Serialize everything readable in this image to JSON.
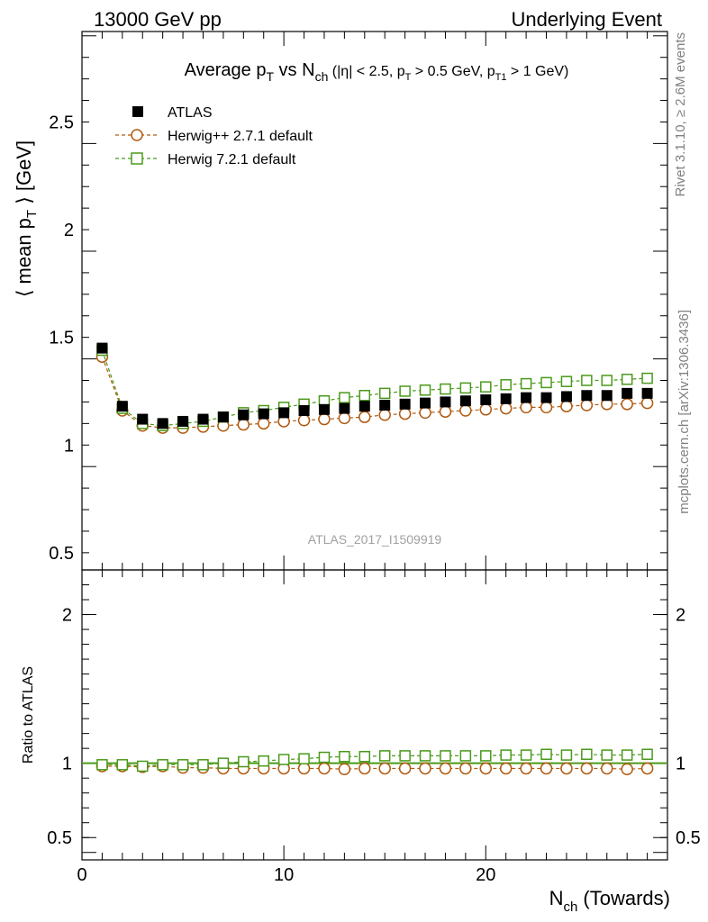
{
  "header": {
    "left": "13000 GeV pp",
    "right": "Underlying Event"
  },
  "side_labels": {
    "rivet": "Rivet 3.1.10, ≥ 2.6M events",
    "mcplots": "mcplots.cern.ch [arXiv:1306.3436]"
  },
  "watermark": "ATLAS_2017_I1509919",
  "chart_data": [
    {
      "type": "scatter",
      "panel": "main",
      "title_parts": {
        "p1": "Average p",
        "s1": "T",
        "p2": " vs N",
        "s2": "ch",
        "p3": " (|η| < 2.5, p",
        "s3": "T",
        "p4": " > 0.5 GeV, p",
        "s4": "T1",
        "p5": " > 1 GeV)"
      },
      "ylabel_parts": {
        "a": "⟨ mean p",
        "sub": "T",
        "b": " ⟩ [GeV]"
      },
      "xlim": [
        0,
        29
      ],
      "ylim": [
        0.42,
        2.92
      ],
      "yticks": [
        0.5,
        1,
        1.5,
        2,
        2.5
      ],
      "ytick_labels": [
        "0.5",
        "1",
        "1.5",
        "2",
        "2.5"
      ],
      "legend": [
        "ATLAS",
        "Herwig++ 2.7.1 default",
        "Herwig 7.2.1 default"
      ],
      "legend_position": "top-left",
      "x": [
        1,
        2,
        3,
        4,
        5,
        6,
        7,
        8,
        9,
        10,
        11,
        12,
        13,
        14,
        15,
        16,
        17,
        18,
        19,
        20,
        21,
        22,
        23,
        24,
        25,
        26,
        27,
        28
      ],
      "series": [
        {
          "name": "ATLAS",
          "color": "#000000",
          "marker": "filled-square",
          "values": [
            1.45,
            1.18,
            1.12,
            1.1,
            1.11,
            1.12,
            1.13,
            1.14,
            1.145,
            1.15,
            1.16,
            1.165,
            1.17,
            1.18,
            1.185,
            1.19,
            1.195,
            1.2,
            1.205,
            1.21,
            1.215,
            1.22,
            1.22,
            1.225,
            1.23,
            1.23,
            1.24,
            1.24
          ]
        },
        {
          "name": "Herwig++ 2.7.1 default",
          "color": "#b05a10",
          "marker": "open-circle",
          "values": [
            1.41,
            1.16,
            1.09,
            1.08,
            1.08,
            1.085,
            1.09,
            1.095,
            1.1,
            1.11,
            1.115,
            1.12,
            1.125,
            1.13,
            1.14,
            1.145,
            1.15,
            1.155,
            1.16,
            1.165,
            1.17,
            1.175,
            1.175,
            1.18,
            1.185,
            1.19,
            1.19,
            1.195
          ]
        },
        {
          "name": "Herwig 7.2.1 default",
          "color": "#4a9a1a",
          "marker": "open-square",
          "values": [
            1.44,
            1.17,
            1.1,
            1.09,
            1.1,
            1.11,
            1.13,
            1.15,
            1.16,
            1.175,
            1.19,
            1.205,
            1.22,
            1.23,
            1.24,
            1.25,
            1.255,
            1.26,
            1.265,
            1.27,
            1.28,
            1.285,
            1.29,
            1.295,
            1.3,
            1.3,
            1.305,
            1.31
          ]
        }
      ]
    },
    {
      "type": "scatter",
      "panel": "ratio",
      "ylabel": "Ratio to ATLAS",
      "xlabel_parts": {
        "a": "N",
        "sub": "ch",
        "b": " (Towards)"
      },
      "xlim": [
        0,
        29
      ],
      "ylim": [
        0.35,
        2.3
      ],
      "xticks": [
        0,
        10,
        20
      ],
      "xtick_labels": [
        "0",
        "10",
        "20"
      ],
      "yticks": [
        0.5,
        1,
        2
      ],
      "ytick_labels": [
        "0.5",
        "1",
        "2"
      ],
      "x": [
        1,
        2,
        3,
        4,
        5,
        6,
        7,
        8,
        9,
        10,
        11,
        12,
        13,
        14,
        15,
        16,
        17,
        18,
        19,
        20,
        21,
        22,
        23,
        24,
        25,
        26,
        27,
        28
      ],
      "series": [
        {
          "name": "Herwig++ 2.7.1 default",
          "color": "#b05a10",
          "marker": "open-circle",
          "values": [
            0.98,
            0.98,
            0.975,
            0.98,
            0.97,
            0.97,
            0.965,
            0.965,
            0.965,
            0.965,
            0.965,
            0.965,
            0.96,
            0.965,
            0.965,
            0.965,
            0.965,
            0.965,
            0.965,
            0.965,
            0.965,
            0.965,
            0.965,
            0.965,
            0.965,
            0.965,
            0.96,
            0.965
          ]
        },
        {
          "name": "Herwig 7.2.1 default",
          "color": "#4a9a1a",
          "marker": "open-square",
          "values": [
            0.99,
            0.99,
            0.98,
            0.99,
            0.99,
            0.99,
            1.0,
            1.01,
            1.015,
            1.025,
            1.03,
            1.04,
            1.045,
            1.045,
            1.05,
            1.05,
            1.05,
            1.05,
            1.05,
            1.05,
            1.055,
            1.055,
            1.06,
            1.055,
            1.06,
            1.055,
            1.055,
            1.06
          ]
        }
      ]
    }
  ]
}
